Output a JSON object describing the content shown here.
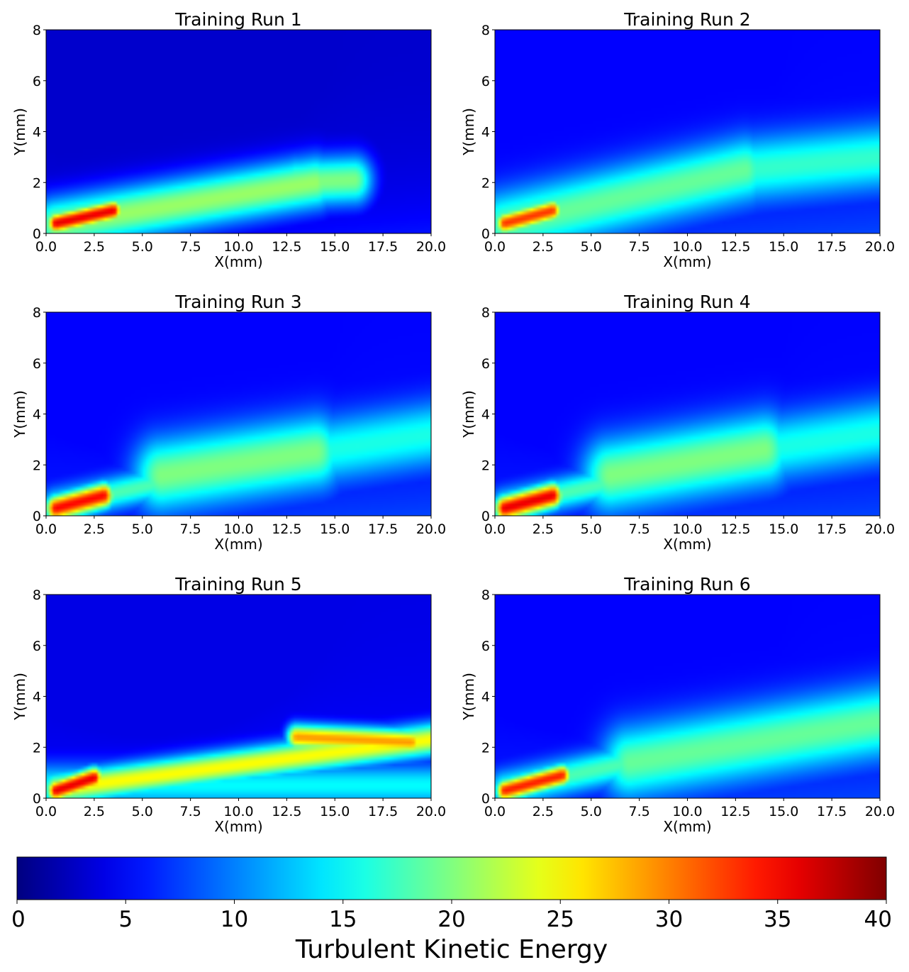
{
  "colorbar": {
    "label": "Turbulent Kinetic Energy",
    "min": 0,
    "max": 40,
    "ticks": [
      "0",
      "5",
      "10",
      "15",
      "20",
      "25",
      "30",
      "35",
      "40"
    ],
    "colormap": [
      "#00007f",
      "#0000ff",
      "#007fff",
      "#00ffff",
      "#7fff7f",
      "#ffff00",
      "#ff7f00",
      "#ff0000",
      "#7f0000"
    ]
  },
  "chart_data": [
    {
      "type": "heatmap",
      "title": "Training Run 1",
      "xlabel": "X(mm)",
      "ylabel": "Y(mm)",
      "xlim": [
        0,
        20
      ],
      "ylim": [
        0,
        8
      ],
      "xticks": [
        "0.0",
        "2.5",
        "5.0",
        "7.5",
        "10.0",
        "12.5",
        "15.0",
        "17.5",
        "20.0"
      ],
      "yticks": [
        "0",
        "2",
        "4",
        "6",
        "8"
      ],
      "value_range": [
        0,
        40
      ],
      "background": 3,
      "features": [
        {
          "x0": 0.5,
          "y0": 0.35,
          "x1": 14,
          "y1": 2.0,
          "width": 0.75,
          "peak": 21
        },
        {
          "x0": 0.5,
          "y0": 0.4,
          "x1": 3.5,
          "y1": 0.9,
          "width": 0.3,
          "peak": 36
        },
        {
          "x0": 13,
          "y0": 2.0,
          "x1": 16,
          "y1": 2.1,
          "width": 0.7,
          "peak": 20
        }
      ]
    },
    {
      "type": "heatmap",
      "title": "Training Run 2",
      "xlabel": "X(mm)",
      "ylabel": "Y(mm)",
      "xlim": [
        0,
        20
      ],
      "ylim": [
        0,
        8
      ],
      "xticks": [
        "0.0",
        "2.5",
        "5.0",
        "7.5",
        "10.0",
        "12.5",
        "15.0",
        "17.5",
        "20.0"
      ],
      "yticks": [
        "0",
        "2",
        "4",
        "6",
        "8"
      ],
      "value_range": [
        0,
        40
      ],
      "background": 5,
      "features": [
        {
          "x0": 0.5,
          "y0": 0.35,
          "x1": 13,
          "y1": 2.5,
          "width": 0.9,
          "peak": 19
        },
        {
          "x0": 0.5,
          "y0": 0.4,
          "x1": 3.0,
          "y1": 0.9,
          "width": 0.3,
          "peak": 33
        },
        {
          "x0": 13,
          "y0": 2.5,
          "x1": 20,
          "y1": 3.0,
          "width": 0.9,
          "peak": 17
        }
      ]
    },
    {
      "type": "heatmap",
      "title": "Training Run 3",
      "xlabel": "X(mm)",
      "ylabel": "Y(mm)",
      "xlim": [
        0,
        20
      ],
      "ylim": [
        0,
        8
      ],
      "xticks": [
        "0.0",
        "2.5",
        "5.0",
        "7.5",
        "10.0",
        "12.5",
        "15.0",
        "17.5",
        "20.0"
      ],
      "yticks": [
        "0",
        "2",
        "4",
        "6",
        "8"
      ],
      "value_range": [
        0,
        40
      ],
      "background": 5,
      "features": [
        {
          "x0": 0.5,
          "y0": 0.4,
          "x1": 6,
          "y1": 1.3,
          "width": 0.45,
          "peak": 18
        },
        {
          "x0": 6,
          "y0": 1.6,
          "x1": 14,
          "y1": 2.5,
          "width": 1.0,
          "peak": 20
        },
        {
          "x0": 14,
          "y0": 2.5,
          "x1": 20,
          "y1": 3.2,
          "width": 0.9,
          "peak": 16
        },
        {
          "x0": 0.5,
          "y0": 0.3,
          "x1": 3.0,
          "y1": 0.8,
          "width": 0.35,
          "peak": 35
        }
      ]
    },
    {
      "type": "heatmap",
      "title": "Training Run 4",
      "xlabel": "X(mm)",
      "ylabel": "Y(mm)",
      "xlim": [
        0,
        20
      ],
      "ylim": [
        0,
        8
      ],
      "xticks": [
        "0.0",
        "2.5",
        "5.0",
        "7.5",
        "10.0",
        "12.5",
        "15.0",
        "17.5",
        "20.0"
      ],
      "yticks": [
        "0",
        "2",
        "4",
        "6",
        "8"
      ],
      "value_range": [
        0,
        40
      ],
      "background": 5,
      "features": [
        {
          "x0": 0.5,
          "y0": 0.4,
          "x1": 6,
          "y1": 1.3,
          "width": 0.45,
          "peak": 18
        },
        {
          "x0": 6,
          "y0": 1.6,
          "x1": 14,
          "y1": 2.6,
          "width": 1.0,
          "peak": 20
        },
        {
          "x0": 14,
          "y0": 2.6,
          "x1": 20,
          "y1": 3.3,
          "width": 0.9,
          "peak": 16
        },
        {
          "x0": 0.5,
          "y0": 0.3,
          "x1": 3.0,
          "y1": 0.8,
          "width": 0.35,
          "peak": 36
        }
      ]
    },
    {
      "type": "heatmap",
      "title": "Training Run 5",
      "xlabel": "X(mm)",
      "ylabel": "Y(mm)",
      "xlim": [
        0,
        20
      ],
      "ylim": [
        0,
        8
      ],
      "xticks": [
        "0.0",
        "2.5",
        "5.0",
        "7.5",
        "10.0",
        "12.5",
        "15.0",
        "17.5",
        "20.0"
      ],
      "yticks": [
        "0",
        "2",
        "4",
        "6",
        "8"
      ],
      "value_range": [
        0,
        40
      ],
      "background": 4,
      "features": [
        {
          "x0": 0.5,
          "y0": 0.35,
          "x1": 20,
          "y1": 2.3,
          "width": 0.45,
          "peak": 25
        },
        {
          "x0": 13,
          "y0": 2.4,
          "x1": 19,
          "y1": 2.2,
          "width": 0.35,
          "peak": 29
        },
        {
          "x0": 0.5,
          "y0": 0.3,
          "x1": 2.5,
          "y1": 0.8,
          "width": 0.3,
          "peak": 36
        },
        {
          "x0": 0,
          "y0": 0.5,
          "x1": 20,
          "y1": 0.5,
          "width": 0.6,
          "peak": 15
        }
      ]
    },
    {
      "type": "heatmap",
      "title": "Training Run 6",
      "xlabel": "X(mm)",
      "ylabel": "Y(mm)",
      "xlim": [
        0,
        20
      ],
      "ylim": [
        0,
        8
      ],
      "xticks": [
        "0.0",
        "2.5",
        "5.0",
        "7.5",
        "10.0",
        "12.5",
        "15.0",
        "17.5",
        "20.0"
      ],
      "yticks": [
        "0",
        "2",
        "4",
        "6",
        "8"
      ],
      "value_range": [
        0,
        40
      ],
      "background": 5,
      "features": [
        {
          "x0": 0.5,
          "y0": 0.35,
          "x1": 7,
          "y1": 1.4,
          "width": 0.5,
          "peak": 18
        },
        {
          "x0": 7,
          "y0": 1.4,
          "x1": 20,
          "y1": 3.0,
          "width": 1.0,
          "peak": 19
        },
        {
          "x0": 0.5,
          "y0": 0.3,
          "x1": 3.5,
          "y1": 0.9,
          "width": 0.3,
          "peak": 34
        }
      ]
    }
  ]
}
